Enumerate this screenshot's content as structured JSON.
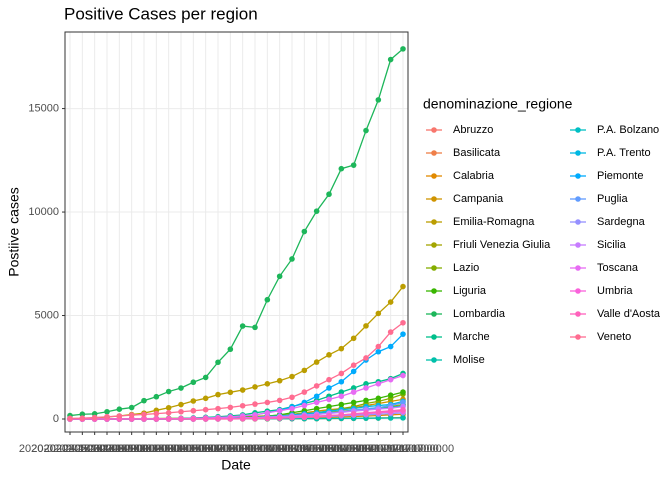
{
  "chart_data": {
    "type": "line",
    "title": "Positive Cases per region",
    "x_label": "Date",
    "y_label": "Postiive cases",
    "legend_title": "denominazione_regione",
    "categories": [
      "2020-02-24 18:00:00",
      "2020-02-25 18:00:00",
      "2020-02-26 18:00:00",
      "2020-02-27 18:00:00",
      "2020-02-28 18:00:00",
      "2020-02-29 18:00:00",
      "2020-03-01 18:00:00",
      "2020-03-02 18:00:00",
      "2020-03-03 18:00:00",
      "2020-03-04 18:00:00",
      "2020-03-05 18:00:00",
      "2020-03-06 18:00:00",
      "2020-03-07 18:00:00",
      "2020-03-08 18:00:00",
      "2020-03-09 18:00:00",
      "2020-03-10 17:00:00",
      "2020-03-11 17:00:00",
      "2020-03-12 17:00:00",
      "2020-03-13 17:00:00",
      "2020-03-14 17:00:00",
      "2020-03-15 17:00:00",
      "2020-03-16 17:00:00",
      "2020-03-17 17:00:00",
      "2020-03-18 17:00:00",
      "2020-03-19 17:00:00",
      "2020-03-20 17:00:00",
      "2020-03-21 17:00:00",
      "2020-03-22 17:00:00"
    ],
    "ylim": [
      -628,
      18700
    ],
    "yticks": [
      0,
      5000,
      10000,
      15000
    ],
    "grid": true,
    "series": [
      {
        "name": "Abruzzo",
        "color": "#F8766D",
        "values": [
          0,
          0,
          0,
          0,
          1,
          1,
          2,
          3,
          5,
          6,
          6,
          9,
          15,
          20,
          30,
          40,
          55,
          75,
          90,
          110,
          140,
          170,
          200,
          230,
          270,
          300,
          350,
          400
        ]
      },
      {
        "name": "Basilicata",
        "color": "#EF7F49",
        "values": [
          0,
          0,
          0,
          0,
          0,
          0,
          0,
          0,
          1,
          1,
          1,
          1,
          3,
          3,
          5,
          5,
          8,
          10,
          10,
          12,
          15,
          20,
          25,
          30,
          40,
          50,
          60,
          70
        ]
      },
      {
        "name": "Calabria",
        "color": "#E18A00",
        "values": [
          0,
          0,
          0,
          1,
          1,
          1,
          1,
          1,
          1,
          1,
          3,
          5,
          7,
          8,
          10,
          15,
          20,
          30,
          40,
          50,
          60,
          80,
          100,
          120,
          140,
          170,
          200,
          230
        ]
      },
      {
        "name": "Campania",
        "color": "#D09400",
        "values": [
          0,
          0,
          3,
          3,
          4,
          13,
          17,
          17,
          30,
          31,
          40,
          60,
          80,
          100,
          110,
          130,
          150,
          180,
          220,
          300,
          380,
          450,
          500,
          550,
          650,
          750,
          850,
          950
        ]
      },
      {
        "name": "Emilia-Romagna",
        "color": "#BB9D00",
        "values": [
          18,
          26,
          47,
          97,
          145,
          217,
          283,
          420,
          544,
          698,
          870,
          1000,
          1180,
          1290,
          1400,
          1550,
          1700,
          1850,
          2050,
          2350,
          2750,
          3100,
          3400,
          3900,
          4500,
          5100,
          5650,
          6400
        ]
      },
      {
        "name": "Friuli Venezia Giulia",
        "color": "#A3A500",
        "values": [
          0,
          0,
          0,
          0,
          0,
          0,
          0,
          0,
          5,
          10,
          15,
          20,
          30,
          50,
          80,
          100,
          120,
          170,
          200,
          250,
          280,
          330,
          380,
          420,
          480,
          550,
          600,
          700
        ]
      },
      {
        "name": "Lazio",
        "color": "#85AD00",
        "values": [
          3,
          3,
          3,
          3,
          3,
          3,
          3,
          5,
          5,
          10,
          15,
          20,
          30,
          50,
          70,
          100,
          120,
          150,
          200,
          250,
          300,
          400,
          500,
          600,
          750,
          850,
          1000,
          1200
        ]
      },
      {
        "name": "Liguria",
        "color": "#39B600",
        "values": [
          0,
          0,
          0,
          0,
          10,
          17,
          20,
          22,
          25,
          25,
          25,
          30,
          45,
          60,
          80,
          100,
          140,
          200,
          300,
          400,
          500,
          600,
          700,
          800,
          900,
          1000,
          1150,
          1300
        ]
      },
      {
        "name": "Lombardia",
        "color": "#1DB65A",
        "values": [
          166,
          231,
          249,
          349,
          474,
          552,
          887,
          1077,
          1326,
          1497,
          1777,
          2008,
          2742,
          3372,
          4490,
          4427,
          5763,
          6896,
          7732,
          9059,
          10043,
          10861,
          12095,
          12266,
          13938,
          15420,
          17370,
          17885
        ]
      },
      {
        "name": "Marche",
        "color": "#00BF8B",
        "values": [
          0,
          0,
          0,
          0,
          0,
          1,
          5,
          10,
          20,
          30,
          50,
          80,
          110,
          150,
          200,
          300,
          380,
          450,
          600,
          750,
          900,
          1100,
          1300,
          1500,
          1700,
          1800,
          1950,
          2200
        ]
      },
      {
        "name": "Molise",
        "color": "#00C0AA",
        "values": [
          0,
          0,
          0,
          0,
          0,
          0,
          0,
          0,
          0,
          0,
          0,
          5,
          5,
          10,
          12,
          15,
          15,
          16,
          16,
          18,
          20,
          25,
          30,
          35,
          40,
          45,
          50,
          55
        ]
      },
      {
        "name": "P.A. Bolzano",
        "color": "#00BFC4",
        "values": [
          0,
          0,
          0,
          0,
          0,
          0,
          0,
          0,
          1,
          1,
          3,
          5,
          10,
          20,
          40,
          70,
          100,
          130,
          170,
          200,
          250,
          300,
          350,
          400,
          450,
          500,
          550,
          650
        ]
      },
      {
        "name": "P.A. Trento",
        "color": "#00B8E3",
        "values": [
          0,
          0,
          0,
          0,
          0,
          0,
          0,
          1,
          3,
          5,
          8,
          12,
          20,
          30,
          50,
          80,
          120,
          150,
          200,
          250,
          300,
          380,
          450,
          500,
          600,
          650,
          700,
          850
        ]
      },
      {
        "name": "Piemonte",
        "color": "#00ABFD",
        "values": [
          0,
          0,
          0,
          0,
          0,
          0,
          0,
          3,
          5,
          10,
          20,
          40,
          60,
          90,
          140,
          200,
          300,
          420,
          580,
          800,
          1100,
          1500,
          1800,
          2300,
          2850,
          3250,
          3500,
          4100
        ]
      },
      {
        "name": "Puglia",
        "color": "#619CFF",
        "values": [
          0,
          0,
          1,
          1,
          1,
          1,
          3,
          3,
          5,
          6,
          8,
          15,
          25,
          30,
          40,
          50,
          80,
          100,
          130,
          160,
          220,
          280,
          350,
          420,
          500,
          550,
          650,
          800
        ]
      },
      {
        "name": "Sardegna",
        "color": "#9590FF",
        "values": [
          0,
          0,
          0,
          0,
          0,
          0,
          0,
          0,
          1,
          2,
          2,
          5,
          7,
          10,
          20,
          30,
          40,
          50,
          60,
          80,
          100,
          120,
          150,
          180,
          200,
          230,
          260,
          300
        ]
      },
      {
        "name": "Sicilia",
        "color": "#C77CFF",
        "values": [
          0,
          0,
          2,
          3,
          3,
          4,
          5,
          7,
          8,
          9,
          15,
          18,
          25,
          40,
          60,
          80,
          100,
          120,
          150,
          190,
          230,
          270,
          320,
          380,
          430,
          480,
          520,
          600
        ]
      },
      {
        "name": "Toscana",
        "color": "#E76BF3",
        "values": [
          0,
          0,
          1,
          2,
          5,
          8,
          10,
          12,
          15,
          20,
          30,
          50,
          70,
          100,
          150,
          200,
          300,
          400,
          500,
          650,
          800,
          950,
          1100,
          1300,
          1500,
          1700,
          1900,
          2100
        ]
      },
      {
        "name": "Umbria",
        "color": "#FA62DB",
        "values": [
          0,
          0,
          0,
          0,
          0,
          0,
          0,
          0,
          2,
          3,
          5,
          9,
          15,
          20,
          30,
          40,
          55,
          70,
          90,
          120,
          140,
          170,
          200,
          230,
          260,
          300,
          330,
          370
        ]
      },
      {
        "name": "Valle d'Aosta",
        "color": "#FF62BC",
        "values": [
          0,
          0,
          0,
          0,
          0,
          0,
          0,
          0,
          0,
          0,
          0,
          0,
          3,
          10,
          15,
          20,
          30,
          40,
          60,
          90,
          110,
          150,
          200,
          250,
          300,
          350,
          400,
          450
        ]
      },
      {
        "name": "Veneto",
        "color": "#FF6C91",
        "values": [
          32,
          43,
          70,
          110,
          145,
          190,
          220,
          260,
          300,
          350,
          400,
          450,
          500,
          560,
          640,
          720,
          800,
          900,
          1050,
          1300,
          1600,
          1900,
          2200,
          2600,
          2950,
          3500,
          4200,
          4650
        ]
      }
    ]
  }
}
